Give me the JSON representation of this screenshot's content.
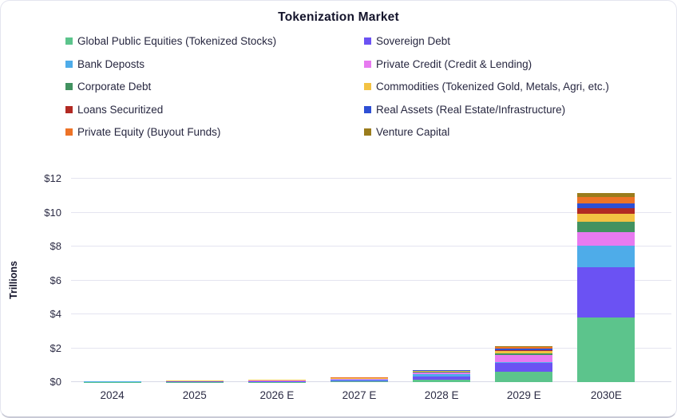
{
  "chart_data": {
    "type": "bar",
    "variant": "stacked",
    "title": "Tokenization Market",
    "ylabel": "Trillions",
    "unit": "USD trillions",
    "ylim": [
      0,
      12
    ],
    "y_ticks": [
      0,
      2,
      4,
      6,
      8,
      10,
      12
    ],
    "y_tick_labels": [
      "$0",
      "$2",
      "$4",
      "$6",
      "$8",
      "$10",
      "$12"
    ],
    "grid": "horizontal",
    "legend_position": "top-two-columns",
    "categories": [
      "2024",
      "2025",
      "2026 E",
      "2027 E",
      "2028 E",
      "2029 E",
      "2030E"
    ],
    "series": [
      {
        "name": "Global Public Equities (Tokenized Stocks)",
        "color": "#5CC48C",
        "values": [
          0.01,
          0.015,
          0.02,
          0.03,
          0.15,
          0.6,
          3.8
        ]
      },
      {
        "name": "Sovereign Debt",
        "color": "#6B52F3",
        "values": [
          0.01,
          0.015,
          0.04,
          0.08,
          0.2,
          0.55,
          3.0
        ]
      },
      {
        "name": "Bank Deposts",
        "color": "#4EACE9",
        "values": [
          0.005,
          0.005,
          0.01,
          0.02,
          0.1,
          0.05,
          1.25
        ]
      },
      {
        "name": "Private Credit (Credit & Lending)",
        "color": "#E77AF0",
        "values": [
          0.01,
          0.015,
          0.03,
          0.06,
          0.12,
          0.4,
          0.8
        ]
      },
      {
        "name": "Corporate Debt",
        "color": "#429260",
        "values": [
          0.005,
          0.005,
          0.01,
          0.02,
          0.04,
          0.1,
          0.6
        ]
      },
      {
        "name": "Commodities (Tokenized Gold, Metals, Agri, etc.)",
        "color": "#F3C243",
        "values": [
          0.02,
          0.025,
          0.03,
          0.03,
          0.05,
          0.15,
          0.5
        ]
      },
      {
        "name": "Loans Securitized",
        "color": "#B22A23",
        "values": [
          0.002,
          0.003,
          0.005,
          0.01,
          0.01,
          0.05,
          0.3
        ]
      },
      {
        "name": "Real Assets (Real Estate/Infrastructure)",
        "color": "#2E4FD4",
        "values": [
          0.003,
          0.004,
          0.005,
          0.01,
          0.02,
          0.1,
          0.3
        ]
      },
      {
        "name": "Private Equity (Buyout Funds)",
        "color": "#ED7327",
        "values": [
          0.002,
          0.003,
          0.005,
          0.01,
          0.01,
          0.05,
          0.35
        ]
      },
      {
        "name": "Venture Capital",
        "color": "#9A7C1C",
        "values": [
          0.003,
          0.005,
          0.005,
          0.01,
          0.01,
          0.05,
          0.25
        ]
      }
    ]
  },
  "colors": {
    "title_text": "#14142b",
    "body_text": "#2c2c45",
    "gridline": "#e4e4f0",
    "axis_line": "#d7d8e6",
    "background": "#ffffff",
    "card_border": "#e4e5ef"
  }
}
